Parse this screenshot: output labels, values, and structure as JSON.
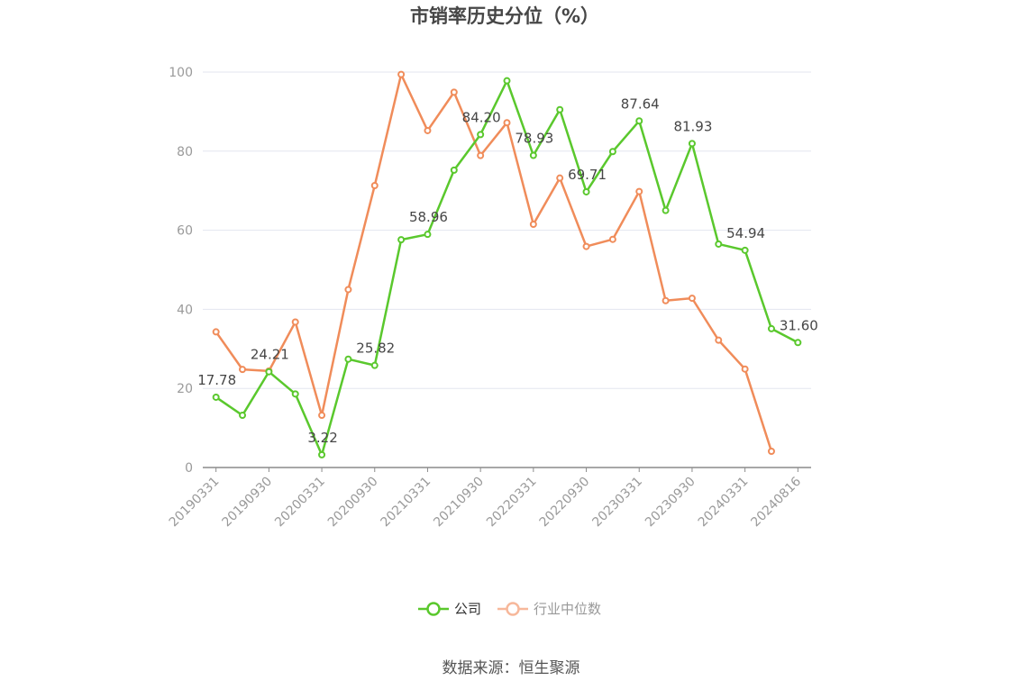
{
  "chart_data": {
    "type": "line",
    "title": "市销率历史分位（%）",
    "source": "数据来源：恒生聚源",
    "xlabel": "",
    "ylabel": "",
    "ylim": [
      0,
      100
    ],
    "yticks": [
      0,
      20,
      40,
      60,
      80,
      100
    ],
    "grid": true,
    "legend_position": "bottom-center",
    "x": [
      "20190331",
      "20190630",
      "20190930",
      "20191231",
      "20200331",
      "20200630",
      "20200930",
      "20201231",
      "20210331",
      "20210630",
      "20210930",
      "20211231",
      "20220331",
      "20220630",
      "20220930",
      "20221231",
      "20230331",
      "20230630",
      "20230930",
      "20231231",
      "20240331",
      "20240630",
      "20240816"
    ],
    "x_tick_labels": [
      "20190331",
      "20190930",
      "20200331",
      "20200930",
      "20210331",
      "20210930",
      "20220331",
      "20220930",
      "20230331",
      "20230930",
      "20240331",
      "20240816"
    ],
    "series": [
      {
        "name": "公司",
        "color": "#5ac82d",
        "values": [
          17.78,
          13.2,
          24.21,
          18.6,
          3.22,
          27.4,
          25.82,
          57.6,
          58.96,
          75.2,
          84.2,
          97.8,
          78.93,
          90.5,
          69.71,
          79.9,
          87.64,
          65.0,
          81.93,
          56.5,
          54.94,
          35.1,
          31.6
        ],
        "labels": [
          "17.78",
          null,
          "24.21",
          null,
          "3.22",
          null,
          "25.82",
          null,
          "58.96",
          null,
          "84.20",
          null,
          "78.93",
          null,
          "69.71",
          null,
          "87.64",
          null,
          "81.93",
          null,
          "54.94",
          null,
          "31.60"
        ]
      },
      {
        "name": "行业中位数",
        "color": "#f08c5a",
        "legend_color": "#f7b89b",
        "values": [
          34.3,
          24.8,
          24.4,
          36.8,
          13.2,
          45.0,
          71.3,
          99.4,
          85.2,
          94.9,
          78.9,
          87.2,
          61.5,
          73.2,
          55.9,
          57.7,
          69.8,
          42.2,
          42.8,
          32.2,
          24.9,
          4.1,
          null
        ]
      }
    ]
  }
}
